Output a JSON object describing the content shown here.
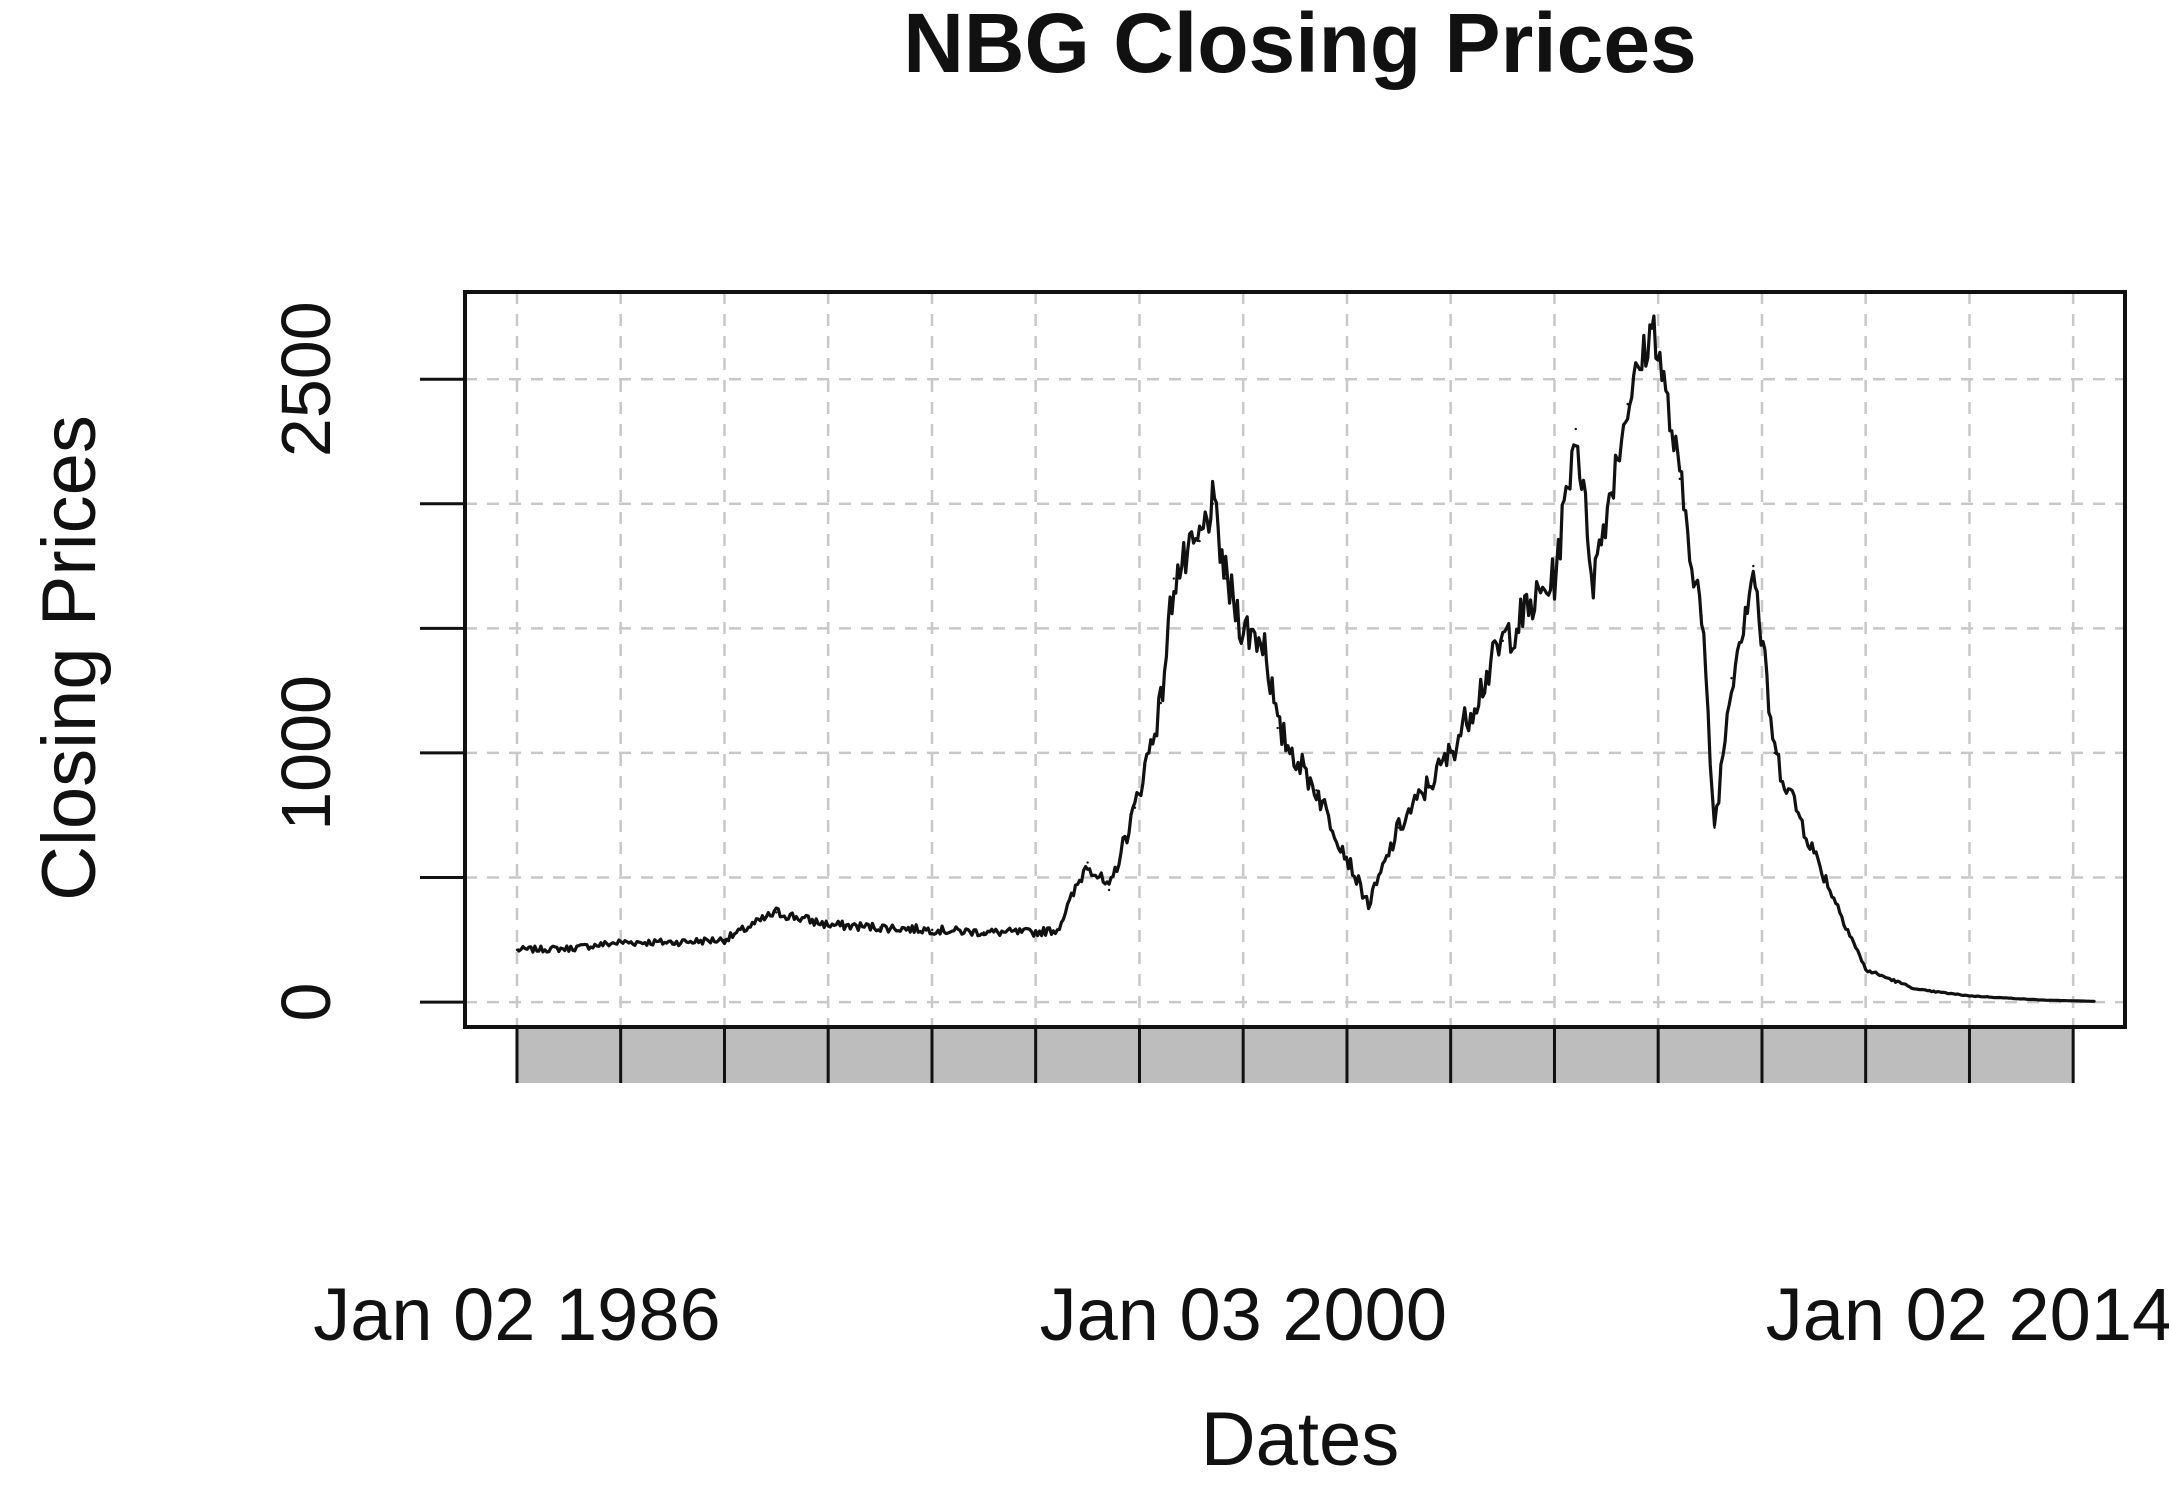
{
  "chart_data": {
    "type": "line",
    "title": "NBG Closing Prices",
    "xlabel": "Dates",
    "ylabel": "Closing Prices",
    "x_tick_labels": [
      "Jan 02 1986",
      "Jan 03 2000",
      "Jan 02 2014"
    ],
    "y_tick_labels": [
      "0",
      "1000",
      "2500"
    ],
    "xlim": [
      "1985-01-01",
      "2017-01-01"
    ],
    "ylim": [
      -100,
      2850
    ],
    "grid": true,
    "line_color": "#111111",
    "band_color": "#bdbdbd",
    "series": [
      {
        "values": [
          [
            "1986-01-02",
            210
          ],
          [
            "1987-01-02",
            215
          ],
          [
            "1988-01-04",
            240
          ],
          [
            "1989-01-02",
            240
          ],
          [
            "1990-01-02",
            250
          ],
          [
            "1991-01-02",
            360
          ],
          [
            "1992-01-02",
            310
          ],
          [
            "1993-01-04",
            300
          ],
          [
            "1994-01-03",
            290
          ],
          [
            "1995-01-02",
            280
          ],
          [
            "1996-01-02",
            280
          ],
          [
            "1996-06-03",
            290
          ],
          [
            "1997-01-02",
            560
          ],
          [
            "1997-06-02",
            450
          ],
          [
            "1997-12-01",
            780
          ],
          [
            "1998-06-01",
            1200
          ],
          [
            "1998-09-01",
            1700
          ],
          [
            "1999-03-01",
            1850
          ],
          [
            "1999-06-01",
            2000
          ],
          [
            "1999-09-01",
            1700
          ],
          [
            "2000-01-03",
            1500
          ],
          [
            "2000-06-01",
            1450
          ],
          [
            "2000-09-01",
            1100
          ],
          [
            "2001-06-01",
            850
          ],
          [
            "2002-06-03",
            390
          ],
          [
            "2003-01-02",
            700
          ],
          [
            "2004-01-02",
            1000
          ],
          [
            "2005-01-03",
            1450
          ],
          [
            "2006-01-02",
            1700
          ],
          [
            "2006-06-01",
            2300
          ],
          [
            "2006-10-02",
            1700
          ],
          [
            "2007-06-01",
            2400
          ],
          [
            "2007-12-03",
            2720
          ],
          [
            "2008-06-02",
            2100
          ],
          [
            "2008-11-03",
            1550
          ],
          [
            "2009-02-02",
            700
          ],
          [
            "2009-06-01",
            1300
          ],
          [
            "2009-11-02",
            1750
          ],
          [
            "2010-04-01",
            1000
          ],
          [
            "2011-01-03",
            600
          ],
          [
            "2012-01-02",
            130
          ],
          [
            "2013-01-02",
            50
          ],
          [
            "2014-01-02",
            25
          ],
          [
            "2015-06-01",
            8
          ],
          [
            "2016-06-01",
            3
          ]
        ]
      }
    ]
  }
}
